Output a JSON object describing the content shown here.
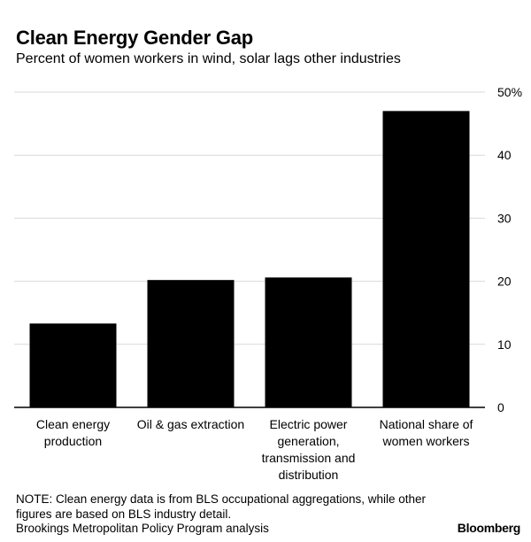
{
  "title": "Clean Energy Gender Gap",
  "subtitle": "Percent of women workers in wind, solar lags other industries",
  "note_lines": [
    "NOTE: Clean energy data is from BLS occupational aggregations, while other",
    "figures are based on BLS industry detail.",
    "Brookings Metropolitan Policy Program analysis"
  ],
  "brand": "Bloomberg",
  "chart_data": {
    "type": "bar",
    "categories": [
      [
        "Clean energy",
        "production"
      ],
      [
        "Oil & gas extraction"
      ],
      [
        "Electric power",
        "generation,",
        "transmission and",
        "distribution"
      ],
      [
        "National share of",
        "women workers"
      ]
    ],
    "values": [
      13.3,
      20.2,
      20.6,
      47.0
    ],
    "ylim": [
      0,
      50
    ],
    "yticks": [
      0,
      10,
      20,
      30,
      40,
      50
    ],
    "ytick_labels": [
      "0",
      "10",
      "20",
      "30",
      "40",
      "50%"
    ],
    "y_axis_side": "right",
    "grid": true,
    "bar_color": "#000000",
    "grid_color": "#d9d9d9"
  }
}
